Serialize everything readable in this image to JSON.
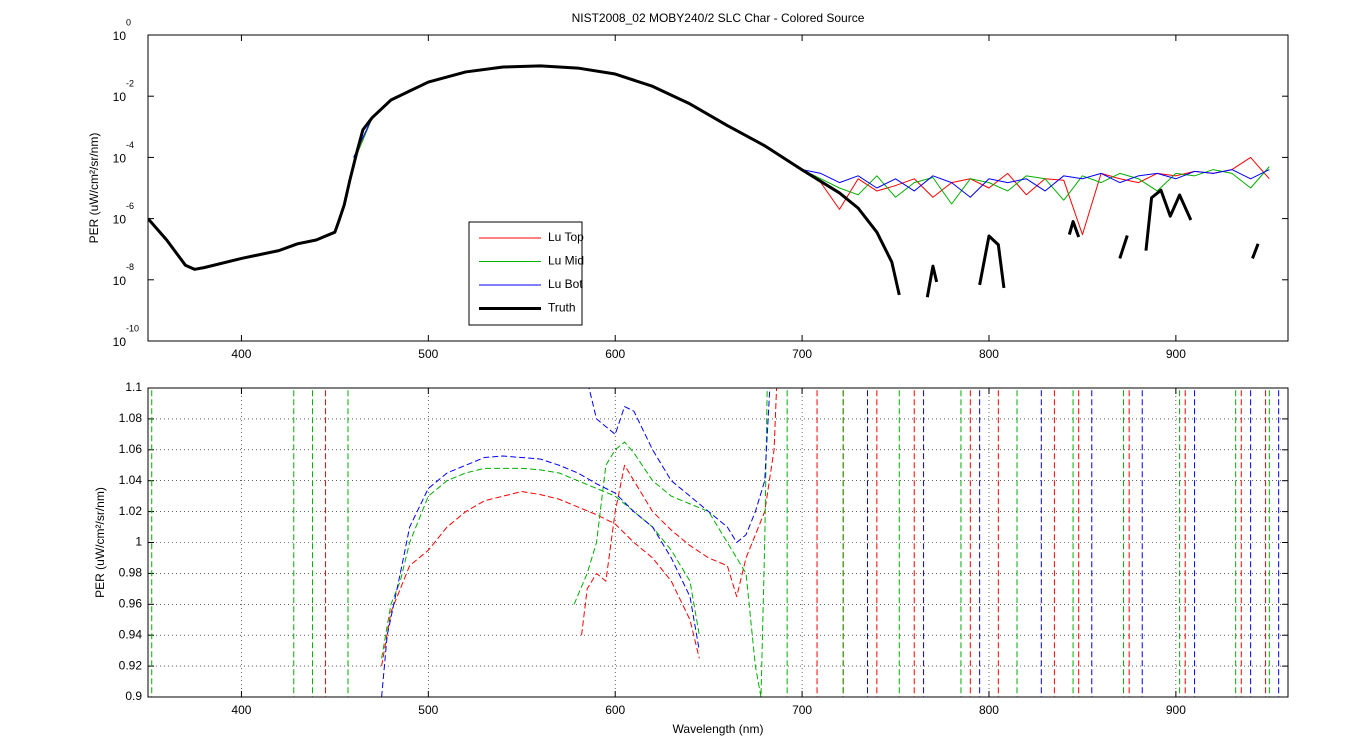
{
  "chart_data": [
    {
      "type": "line",
      "title": "NIST2008_02  MOBY240/2 SLC Char - Colored Source",
      "y_label": "PER  (uW/cm²/sr/nm)",
      "log_y": true,
      "grid": false,
      "line_style": "solid",
      "legend": "lower left",
      "xlim": [
        350,
        960
      ],
      "xticks": [
        400,
        500,
        600,
        700,
        800,
        900
      ],
      "ylim": [
        1e-10,
        1
      ],
      "yticks": [
        {
          "value": 1e-10,
          "label": "10",
          "exponent": "-10"
        },
        {
          "value": 1e-08,
          "label": "10",
          "exponent": "-8"
        },
        {
          "value": 1e-06,
          "label": "10",
          "exponent": "-6"
        },
        {
          "value": 0.0001,
          "label": "10",
          "exponent": "-4"
        },
        {
          "value": 0.01,
          "label": "10",
          "exponent": "-2"
        },
        {
          "value": 1,
          "label": "10",
          "exponent": "0"
        }
      ],
      "series": [
        {
          "name": "Lu Top",
          "color": "#ff0000",
          "linewidth": 1,
          "x": [
            460,
            470,
            480,
            490,
            500,
            510,
            520,
            530,
            540,
            550,
            560,
            570,
            580,
            590,
            600,
            610,
            620,
            630,
            640,
            650,
            660,
            670,
            680,
            690,
            700,
            710,
            720,
            730,
            740,
            750,
            760,
            770,
            780,
            790,
            800,
            810,
            820,
            830,
            840,
            850,
            860,
            870,
            880,
            890,
            900,
            910,
            920,
            930,
            940,
            950
          ],
          "values": [
            7e-05,
            0.002,
            0.0075,
            0.016,
            0.029,
            0.045,
            0.062,
            0.078,
            0.09,
            0.096,
            0.098,
            0.093,
            0.083,
            0.07,
            0.053,
            0.035,
            0.021,
            0.011,
            0.0056,
            0.0026,
            0.0011,
            0.0005,
            0.00024,
            0.0001,
            4e-05,
            1.5e-05,
            2e-06,
            2e-05,
            8e-06,
            1.2e-05,
            2e-05,
            5e-06,
            1.5e-05,
            2e-05,
            1e-05,
            3e-05,
            6e-06,
            2e-05,
            1.8e-05,
            3e-07,
            3e-05,
            2e-05,
            1.5e-05,
            3e-05,
            2.5e-05,
            3.5e-05,
            3e-05,
            4e-05,
            0.0001,
            2e-05
          ]
        },
        {
          "name": "Lu Mid",
          "color": "#00b000",
          "linewidth": 1,
          "x": [
            460,
            470,
            480,
            490,
            500,
            510,
            520,
            530,
            540,
            550,
            560,
            570,
            580,
            590,
            600,
            610,
            620,
            630,
            640,
            650,
            660,
            670,
            680,
            690,
            700,
            710,
            720,
            730,
            740,
            750,
            760,
            770,
            780,
            790,
            800,
            810,
            820,
            830,
            840,
            850,
            860,
            870,
            880,
            890,
            900,
            910,
            920,
            930,
            940,
            950
          ],
          "values": [
            7e-05,
            0.002,
            0.0075,
            0.016,
            0.029,
            0.045,
            0.062,
            0.078,
            0.09,
            0.096,
            0.098,
            0.093,
            0.083,
            0.07,
            0.053,
            0.035,
            0.021,
            0.011,
            0.0056,
            0.0026,
            0.0011,
            0.0005,
            0.00024,
            0.0001,
            4e-05,
            2e-05,
            1e-05,
            6e-06,
            2.5e-05,
            5e-06,
            1.5e-05,
            2.2e-05,
            3e-06,
            2e-05,
            1.5e-05,
            8e-06,
            2.5e-05,
            2e-05,
            4e-06,
            2.5e-05,
            1.5e-05,
            3e-05,
            2e-05,
            8e-06,
            3e-05,
            2.5e-05,
            4e-05,
            3e-05,
            1e-05,
            5e-05
          ]
        },
        {
          "name": "Lu Bot",
          "color": "#0000ff",
          "linewidth": 1,
          "x": [
            460,
            470,
            480,
            490,
            500,
            510,
            520,
            530,
            540,
            550,
            560,
            570,
            580,
            590,
            600,
            610,
            620,
            630,
            640,
            650,
            660,
            670,
            680,
            690,
            700,
            710,
            720,
            730,
            740,
            750,
            760,
            770,
            780,
            790,
            800,
            810,
            820,
            830,
            840,
            850,
            860,
            870,
            880,
            890,
            900,
            910,
            920,
            930,
            940,
            950
          ],
          "values": [
            0.0001,
            0.002,
            0.0075,
            0.016,
            0.029,
            0.045,
            0.062,
            0.078,
            0.09,
            0.096,
            0.098,
            0.093,
            0.083,
            0.07,
            0.053,
            0.035,
            0.021,
            0.011,
            0.0056,
            0.0026,
            0.0011,
            0.0005,
            0.00024,
            0.0001,
            4e-05,
            3e-05,
            1.5e-05,
            2.5e-05,
            1e-05,
            2e-05,
            8e-06,
            2.5e-05,
            1.5e-05,
            5e-06,
            2e-05,
            1.5e-05,
            2e-05,
            8e-06,
            2.5e-05,
            2e-05,
            3e-05,
            1.5e-05,
            2.5e-05,
            3e-05,
            2e-05,
            3.5e-05,
            3e-05,
            4e-05,
            2e-05,
            4e-05
          ]
        },
        {
          "name": "Truth",
          "color": "#000000",
          "linewidth": 3,
          "x": [
            350,
            360,
            370,
            375,
            380,
            400,
            420,
            430,
            440,
            450,
            452,
            455,
            458,
            462,
            465,
            470,
            480,
            500,
            520,
            540,
            560,
            580,
            600,
            620,
            640,
            660,
            680,
            700,
            720,
            730,
            740,
            748,
            752,
            753,
            767,
            770,
            772,
            773,
            795,
            800,
            805,
            808,
            809,
            843,
            845,
            848,
            849,
            870,
            874,
            875,
            884,
            887,
            892,
            897,
            902,
            908,
            909,
            941,
            944
          ],
          "values": [
            1e-06,
            2e-07,
            3e-08,
            2.2e-08,
            2.5e-08,
            5e-08,
            9e-08,
            1.5e-07,
            2e-07,
            3.6e-07,
            8e-07,
            2.8e-06,
            1.8e-05,
            0.00017,
            0.0008,
            0.002,
            0.0075,
            0.029,
            0.062,
            0.09,
            0.098,
            0.083,
            0.053,
            0.021,
            0.0056,
            0.0011,
            0.00024,
            3.9e-05,
            6.9e-06,
            2.2e-06,
            3.6e-07,
            3.8e-08,
            3.2e-09,
            null,
            2.7e-09,
            2.8e-08,
            8.5e-09,
            null,
            6.8e-09,
            2.7e-07,
            1.4e-07,
            5.4e-09,
            null,
            3e-07,
            8e-07,
            2.5e-07,
            null,
            5e-08,
            2.8e-07,
            null,
            9e-08,
            4.8e-06,
            8.5e-06,
            1.2e-06,
            5.9e-06,
            9e-07,
            null,
            5e-08,
            1.5e-07
          ]
        }
      ]
    },
    {
      "type": "line",
      "x_label": "Wavelength (nm)",
      "y_label": "PER  (uW/cm²/sr/nm)",
      "log_y": false,
      "grid": true,
      "line_style": "dashed",
      "xlim": [
        350,
        960
      ],
      "xticks": [
        400,
        500,
        600,
        700,
        800,
        900
      ],
      "ylim": [
        0.9,
        1.1
      ],
      "yticks": [
        0.9,
        0.92,
        0.94,
        0.96,
        0.98,
        1,
        1.02,
        1.04,
        1.06,
        1.08,
        1.1
      ],
      "series": [
        {
          "name": "Lu Top",
          "color": "#ff0000",
          "linewidth": 1,
          "x": [
            445,
            445,
            446,
            475,
            480,
            485,
            490,
            500,
            510,
            520,
            530,
            540,
            550,
            560,
            570,
            580,
            590,
            600,
            610,
            620,
            630,
            640,
            645,
            646,
            582,
            585,
            590,
            595,
            600,
            605,
            610,
            620,
            630,
            640,
            650,
            660,
            665,
            670,
            675,
            680,
            685,
            688,
            689,
            708,
            708,
            709,
            722,
            722,
            723,
            740,
            740,
            741,
            760,
            760,
            761,
            790,
            790,
            791,
            805,
            805,
            806,
            835,
            835,
            836,
            848,
            848,
            849,
            875,
            875,
            876,
            905,
            905,
            906,
            935,
            935,
            936,
            948,
            948
          ],
          "values": [
            0.85,
            1.15,
            null,
            0.92,
            0.955,
            0.97,
            0.985,
            0.995,
            1.01,
            1.02,
            1.027,
            1.03,
            1.033,
            1.031,
            1.028,
            1.023,
            1.018,
            1.012,
            1.0,
            0.99,
            0.975,
            0.95,
            0.925,
            null,
            0.94,
            0.97,
            0.98,
            0.975,
            1.02,
            1.05,
            1.04,
            1.02,
            1.008,
            0.998,
            0.99,
            0.985,
            0.965,
            0.99,
            1.005,
            1.02,
            1.06,
            1.15,
            null,
            0.85,
            1.15,
            null,
            0.85,
            1.15,
            null,
            0.85,
            1.15,
            null,
            0.85,
            1.15,
            null,
            0.85,
            1.15,
            null,
            0.85,
            1.15,
            null,
            0.85,
            1.15,
            null,
            0.85,
            1.15,
            null,
            0.85,
            1.15,
            null,
            0.85,
            1.15,
            null,
            0.85,
            1.15,
            null,
            0.85,
            1.15
          ]
        },
        {
          "name": "Lu Mid",
          "color": "#00b000",
          "linewidth": 1,
          "x": [
            352,
            352,
            353,
            428,
            428,
            429,
            438,
            438,
            439,
            457,
            457,
            458,
            475,
            480,
            485,
            490,
            500,
            510,
            520,
            530,
            540,
            550,
            560,
            570,
            580,
            590,
            600,
            610,
            620,
            630,
            640,
            645,
            646,
            578,
            585,
            590,
            595,
            600,
            605,
            610,
            620,
            630,
            640,
            650,
            660,
            665,
            670,
            675,
            678,
            680,
            682,
            683,
            692,
            692,
            693,
            722,
            722,
            723,
            752,
            752,
            753,
            785,
            785,
            786,
            815,
            815,
            816,
            845,
            845,
            846,
            872,
            872,
            873,
            902,
            902,
            903,
            932,
            932,
            933,
            950,
            950
          ],
          "values": [
            0.85,
            1.15,
            null,
            0.85,
            1.15,
            null,
            0.85,
            1.15,
            null,
            0.85,
            1.15,
            null,
            0.925,
            0.96,
            0.975,
            1.0,
            1.03,
            1.04,
            1.045,
            1.048,
            1.048,
            1.048,
            1.047,
            1.045,
            1.04,
            1.035,
            1.03,
            1.02,
            1.01,
            0.995,
            0.975,
            0.94,
            null,
            0.96,
            0.98,
            1.0,
            1.05,
            1.06,
            1.065,
            1.058,
            1.04,
            1.03,
            1.025,
            1.02,
            1.0,
            0.99,
            0.98,
            0.92,
            0.9,
            1.0,
            1.15,
            null,
            0.85,
            1.15,
            null,
            0.85,
            1.15,
            null,
            0.85,
            1.15,
            null,
            0.85,
            1.15,
            null,
            0.85,
            1.15,
            null,
            0.85,
            1.15,
            null,
            0.85,
            1.15,
            null,
            0.85,
            1.15,
            null,
            0.85,
            1.15,
            null,
            0.85,
            1.15
          ]
        },
        {
          "name": "Lu Bot",
          "color": "#0000ff",
          "linewidth": 1,
          "x": [
            475,
            478,
            485,
            490,
            500,
            510,
            520,
            530,
            540,
            550,
            560,
            570,
            580,
            590,
            600,
            610,
            620,
            630,
            640,
            645,
            646,
            582,
            590,
            600,
            605,
            610,
            620,
            630,
            640,
            650,
            660,
            665,
            670,
            675,
            680,
            685,
            686,
            735,
            735,
            736,
            765,
            765,
            766,
            795,
            795,
            796,
            828,
            828,
            829,
            855,
            855,
            856,
            882,
            882,
            883,
            910,
            910,
            911,
            940,
            940,
            941,
            955,
            955
          ],
          "values": [
            0.9,
            0.94,
            0.98,
            1.01,
            1.035,
            1.045,
            1.05,
            1.055,
            1.056,
            1.055,
            1.054,
            1.05,
            1.045,
            1.038,
            1.032,
            1.02,
            1.01,
            0.99,
            0.965,
            0.93,
            null,
            1.12,
            1.08,
            1.07,
            1.088,
            1.085,
            1.06,
            1.04,
            1.03,
            1.02,
            1.01,
            1.0,
            1.005,
            1.02,
            1.04,
            1.15,
            null,
            0.85,
            1.15,
            null,
            0.85,
            1.15,
            null,
            0.85,
            1.15,
            null,
            0.85,
            1.15,
            null,
            0.85,
            1.15,
            null,
            0.85,
            1.15,
            null,
            0.85,
            1.15,
            null,
            0.85,
            1.15,
            null,
            0.85,
            1.15
          ]
        }
      ]
    }
  ]
}
